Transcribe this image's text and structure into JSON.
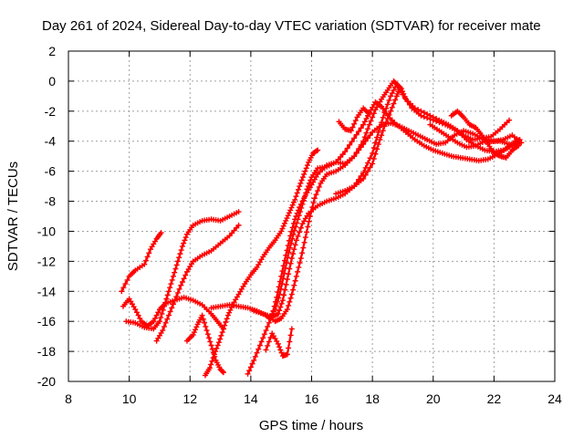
{
  "colors": {
    "series": "#ff0000",
    "grid": "#a0a0a0",
    "frame": "#000000"
  },
  "chart_data": {
    "type": "scatter",
    "title": "Day 261 of 2024, Sidereal Day-to-day VTEC variation (SDTVAR) for receiver mate",
    "xlabel": "GPS time / hours",
    "ylabel": "SDTVAR / TECUs",
    "xlim": [
      8,
      24
    ],
    "ylim": [
      -20,
      2
    ],
    "xticks": [
      8,
      10,
      12,
      14,
      16,
      18,
      20,
      22,
      24
    ],
    "yticks": [
      -20,
      -18,
      -16,
      -14,
      -12,
      -10,
      -8,
      -6,
      -4,
      -2,
      0,
      2
    ],
    "grid": true,
    "legend": "none",
    "series": [
      {
        "points": [
          [
            9.75,
            -14.0
          ],
          [
            10.0,
            -13.0
          ],
          [
            10.2,
            -12.6
          ],
          [
            10.5,
            -12.2
          ],
          [
            10.7,
            -11.2
          ],
          [
            10.9,
            -10.5
          ],
          [
            11.05,
            -10.1
          ]
        ]
      },
      {
        "points": [
          [
            9.8,
            -15.0
          ],
          [
            10.0,
            -14.5
          ],
          [
            10.2,
            -15.2
          ],
          [
            10.4,
            -16.0
          ],
          [
            10.6,
            -16.3
          ],
          [
            10.8,
            -16.0
          ],
          [
            11.0,
            -15.2
          ],
          [
            11.2,
            -14.8
          ],
          [
            11.5,
            -14.6
          ],
          [
            11.8,
            -14.4
          ],
          [
            12.1,
            -14.6
          ],
          [
            12.4,
            -14.9
          ],
          [
            12.7,
            -15.5
          ],
          [
            12.9,
            -16.0
          ],
          [
            13.1,
            -16.5
          ]
        ]
      },
      {
        "points": [
          [
            9.9,
            -16.0
          ],
          [
            10.2,
            -16.1
          ],
          [
            10.5,
            -16.4
          ],
          [
            10.8,
            -16.5
          ],
          [
            11.0,
            -16.0
          ],
          [
            11.15,
            -15.0
          ],
          [
            11.3,
            -14.0
          ],
          [
            11.45,
            -13.0
          ],
          [
            11.6,
            -12.0
          ],
          [
            11.75,
            -11.0
          ],
          [
            11.9,
            -10.2
          ],
          [
            12.1,
            -9.6
          ],
          [
            12.4,
            -9.3
          ],
          [
            12.7,
            -9.2
          ],
          [
            13.0,
            -9.3
          ],
          [
            13.3,
            -9.0
          ],
          [
            13.6,
            -8.7
          ]
        ]
      },
      {
        "points": [
          [
            10.9,
            -17.3
          ],
          [
            11.1,
            -16.6
          ],
          [
            11.3,
            -15.6
          ],
          [
            11.5,
            -14.6
          ],
          [
            11.7,
            -13.6
          ],
          [
            11.9,
            -12.7
          ],
          [
            12.1,
            -12.0
          ],
          [
            12.4,
            -11.6
          ],
          [
            12.7,
            -11.3
          ],
          [
            13.0,
            -10.8
          ],
          [
            13.3,
            -10.3
          ],
          [
            13.6,
            -9.6
          ]
        ]
      },
      {
        "points": [
          [
            11.9,
            -17.3
          ],
          [
            12.1,
            -16.9
          ],
          [
            12.25,
            -16.2
          ],
          [
            12.4,
            -15.6
          ],
          [
            12.55,
            -16.6
          ],
          [
            12.7,
            -17.6
          ],
          [
            12.85,
            -18.6
          ],
          [
            13.0,
            -19.2
          ],
          [
            13.1,
            -19.4
          ]
        ]
      },
      {
        "points": [
          [
            12.5,
            -19.6
          ],
          [
            12.65,
            -19.1
          ],
          [
            12.8,
            -18.2
          ],
          [
            12.95,
            -17.4
          ],
          [
            13.1,
            -16.5
          ],
          [
            13.25,
            -15.6
          ],
          [
            13.4,
            -14.9
          ],
          [
            13.6,
            -14.2
          ],
          [
            13.8,
            -13.5
          ],
          [
            14.0,
            -12.9
          ],
          [
            14.2,
            -12.4
          ],
          [
            14.4,
            -11.7
          ],
          [
            14.6,
            -11.1
          ],
          [
            14.8,
            -10.6
          ],
          [
            15.0,
            -10.0
          ],
          [
            15.15,
            -9.3
          ],
          [
            15.3,
            -8.6
          ],
          [
            15.45,
            -7.9
          ],
          [
            15.6,
            -7.0
          ],
          [
            15.75,
            -6.2
          ],
          [
            15.9,
            -5.4
          ],
          [
            16.05,
            -4.8
          ],
          [
            16.2,
            -4.6
          ]
        ]
      },
      {
        "points": [
          [
            12.7,
            -15.1
          ],
          [
            13.0,
            -15.0
          ],
          [
            13.3,
            -14.9
          ],
          [
            13.6,
            -15.0
          ],
          [
            13.9,
            -15.1
          ],
          [
            14.2,
            -15.3
          ],
          [
            14.5,
            -15.6
          ],
          [
            14.8,
            -16.0
          ],
          [
            15.0,
            -15.8
          ],
          [
            15.2,
            -15.2
          ],
          [
            15.35,
            -14.2
          ],
          [
            15.5,
            -13.0
          ],
          [
            15.65,
            -11.8
          ],
          [
            15.8,
            -10.4
          ],
          [
            15.95,
            -9.0
          ],
          [
            16.1,
            -7.8
          ],
          [
            16.3,
            -6.8
          ],
          [
            16.5,
            -6.2
          ],
          [
            16.8,
            -6.0
          ],
          [
            17.1,
            -5.6
          ],
          [
            17.4,
            -5.0
          ],
          [
            17.7,
            -4.2
          ],
          [
            18.0,
            -3.4
          ],
          [
            18.3,
            -2.9
          ],
          [
            18.6,
            -2.8
          ],
          [
            18.9,
            -3.0
          ],
          [
            19.2,
            -3.3
          ],
          [
            19.5,
            -3.6
          ],
          [
            19.8,
            -3.9
          ],
          [
            20.1,
            -4.2
          ],
          [
            20.4,
            -4.1
          ],
          [
            20.7,
            -3.6
          ],
          [
            21.0,
            -3.3
          ],
          [
            21.3,
            -3.5
          ],
          [
            21.6,
            -3.8
          ],
          [
            21.9,
            -4.0
          ],
          [
            22.2,
            -4.0
          ],
          [
            22.5,
            -4.2
          ],
          [
            22.8,
            -4.3
          ]
        ]
      },
      {
        "points": [
          [
            13.9,
            -19.5
          ],
          [
            14.1,
            -18.6
          ],
          [
            14.3,
            -17.6
          ],
          [
            14.5,
            -16.6
          ],
          [
            14.7,
            -15.6
          ],
          [
            14.85,
            -14.4
          ],
          [
            15.0,
            -13.0
          ],
          [
            15.15,
            -11.6
          ],
          [
            15.3,
            -10.3
          ],
          [
            15.45,
            -9.2
          ],
          [
            15.6,
            -8.4
          ],
          [
            15.8,
            -7.6
          ],
          [
            16.0,
            -6.9
          ],
          [
            16.2,
            -6.2
          ],
          [
            16.5,
            -5.6
          ],
          [
            16.8,
            -5.4
          ],
          [
            17.1,
            -5.5
          ],
          [
            17.4,
            -5.0
          ],
          [
            17.7,
            -4.0
          ],
          [
            17.9,
            -2.9
          ],
          [
            18.1,
            -1.9
          ],
          [
            18.3,
            -1.2
          ],
          [
            18.5,
            -0.6
          ],
          [
            18.7,
            0.0
          ],
          [
            18.85,
            -0.3
          ],
          [
            19.0,
            -0.9
          ],
          [
            19.3,
            -1.8
          ],
          [
            19.6,
            -2.3
          ],
          [
            20.0,
            -2.6
          ],
          [
            20.4,
            -2.9
          ],
          [
            20.7,
            -3.2
          ],
          [
            21.0,
            -3.6
          ],
          [
            21.3,
            -3.9
          ],
          [
            21.6,
            -3.8
          ],
          [
            21.9,
            -3.7
          ],
          [
            22.2,
            -3.2
          ],
          [
            22.5,
            -2.6
          ]
        ]
      },
      {
        "points": [
          [
            14.1,
            -15.3
          ],
          [
            14.4,
            -15.5
          ],
          [
            14.7,
            -15.7
          ],
          [
            14.9,
            -15.5
          ],
          [
            15.05,
            -14.6
          ],
          [
            15.2,
            -13.2
          ],
          [
            15.35,
            -11.8
          ],
          [
            15.5,
            -10.6
          ],
          [
            15.7,
            -9.5
          ],
          [
            15.9,
            -8.8
          ],
          [
            16.2,
            -8.3
          ],
          [
            16.5,
            -8.0
          ],
          [
            16.8,
            -7.8
          ],
          [
            17.1,
            -7.5
          ],
          [
            17.4,
            -7.0
          ],
          [
            17.7,
            -6.1
          ],
          [
            18.0,
            -4.8
          ],
          [
            18.2,
            -3.4
          ],
          [
            18.4,
            -2.1
          ],
          [
            18.6,
            -1.0
          ],
          [
            18.8,
            -0.2
          ],
          [
            18.95,
            -0.5
          ],
          [
            19.1,
            -1.2
          ],
          [
            19.4,
            -1.8
          ],
          [
            19.8,
            -2.2
          ],
          [
            20.2,
            -2.6
          ],
          [
            20.5,
            -2.9
          ],
          [
            20.8,
            -3.3
          ],
          [
            21.1,
            -3.9
          ],
          [
            21.4,
            -4.3
          ],
          [
            21.7,
            -4.6
          ],
          [
            22.0,
            -4.7
          ],
          [
            22.3,
            -4.6
          ],
          [
            22.6,
            -4.3
          ],
          [
            22.85,
            -4.1
          ]
        ]
      },
      {
        "points": [
          [
            14.5,
            -17.9
          ],
          [
            14.7,
            -16.8
          ],
          [
            14.9,
            -17.5
          ],
          [
            15.05,
            -18.3
          ],
          [
            15.2,
            -18.2
          ],
          [
            15.35,
            -16.5
          ]
        ]
      },
      {
        "points": [
          [
            14.6,
            -15.8
          ],
          [
            14.8,
            -15.2
          ],
          [
            14.95,
            -14.2
          ],
          [
            15.1,
            -12.8
          ],
          [
            15.25,
            -11.4
          ],
          [
            15.4,
            -10.2
          ],
          [
            15.55,
            -9.2
          ],
          [
            15.7,
            -8.2
          ],
          [
            15.85,
            -7.2
          ],
          [
            16.0,
            -6.4
          ],
          [
            16.2,
            -5.8
          ],
          [
            16.5,
            -5.7
          ],
          [
            16.8,
            -5.4
          ],
          [
            17.1,
            -4.7
          ],
          [
            17.4,
            -3.8
          ],
          [
            17.7,
            -2.9
          ],
          [
            17.9,
            -2.1
          ],
          [
            18.1,
            -1.4
          ],
          [
            18.3,
            -1.7
          ],
          [
            18.5,
            -2.3
          ],
          [
            18.8,
            -2.9
          ],
          [
            19.1,
            -3.4
          ],
          [
            19.4,
            -3.9
          ],
          [
            19.7,
            -4.3
          ],
          [
            20.0,
            -4.6
          ],
          [
            20.3,
            -4.8
          ],
          [
            20.6,
            -5.0
          ],
          [
            20.9,
            -5.1
          ],
          [
            21.2,
            -5.2
          ],
          [
            21.5,
            -5.3
          ],
          [
            21.8,
            -5.2
          ],
          [
            22.1,
            -4.9
          ],
          [
            22.4,
            -4.5
          ],
          [
            22.7,
            -4.0
          ],
          [
            22.85,
            -3.9
          ]
        ]
      },
      {
        "points": [
          [
            16.8,
            -7.5
          ],
          [
            17.1,
            -7.3
          ],
          [
            17.4,
            -7.0
          ],
          [
            17.7,
            -6.5
          ],
          [
            18.0,
            -5.5
          ],
          [
            18.2,
            -4.2
          ],
          [
            18.4,
            -3.0
          ],
          [
            18.6,
            -2.0
          ],
          [
            18.8,
            -1.0
          ],
          [
            18.9,
            -0.4
          ]
        ]
      },
      {
        "points": [
          [
            16.9,
            -2.7
          ],
          [
            17.1,
            -3.2
          ],
          [
            17.3,
            -3.3
          ],
          [
            17.5,
            -2.4
          ],
          [
            17.7,
            -1.8
          ],
          [
            17.9,
            -2.2
          ]
        ]
      },
      {
        "points": [
          [
            20.6,
            -2.3
          ],
          [
            20.8,
            -2.0
          ],
          [
            21.0,
            -2.4
          ],
          [
            21.2,
            -2.9
          ],
          [
            21.4,
            -3.1
          ],
          [
            21.6,
            -3.6
          ],
          [
            21.8,
            -4.2
          ],
          [
            22.0,
            -4.8
          ],
          [
            22.2,
            -5.0
          ],
          [
            22.4,
            -5.1
          ],
          [
            22.6,
            -4.6
          ],
          [
            22.8,
            -4.3
          ]
        ]
      },
      {
        "points": [
          [
            19.9,
            -2.9
          ],
          [
            20.2,
            -3.3
          ],
          [
            20.5,
            -3.7
          ],
          [
            20.8,
            -4.1
          ],
          [
            21.1,
            -4.4
          ],
          [
            21.4,
            -4.3
          ],
          [
            21.7,
            -4.0
          ],
          [
            22.0,
            -4.0
          ],
          [
            22.3,
            -3.9
          ],
          [
            22.6,
            -3.6
          ],
          [
            22.9,
            -4.1
          ]
        ]
      }
    ]
  }
}
